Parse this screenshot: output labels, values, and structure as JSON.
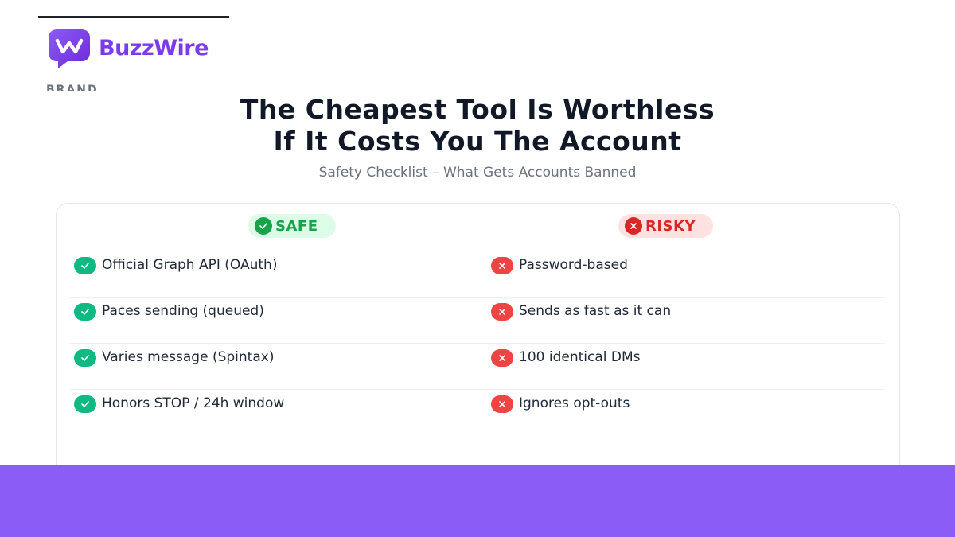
{
  "brand": {
    "name": "BuzzWire",
    "label": "BRAND"
  },
  "header": {
    "title_lines": [
      "The Cheapest Tool Is Worthless",
      "If It Costs You The Account"
    ],
    "subtitle": "Safety Checklist – What Gets Accounts Banned"
  },
  "columns": [
    {
      "heading": "SAFE",
      "items": [
        "Official Graph API (OAuth)",
        "Paces sending (queued)",
        "Varies message (Spintax)",
        "Honors STOP / 24h window"
      ]
    },
    {
      "heading": "RISKY",
      "items": [
        "Password-based",
        "Sends as fast as it can",
        "100 identical DMs",
        "Ignores opt-outs"
      ]
    }
  ]
}
